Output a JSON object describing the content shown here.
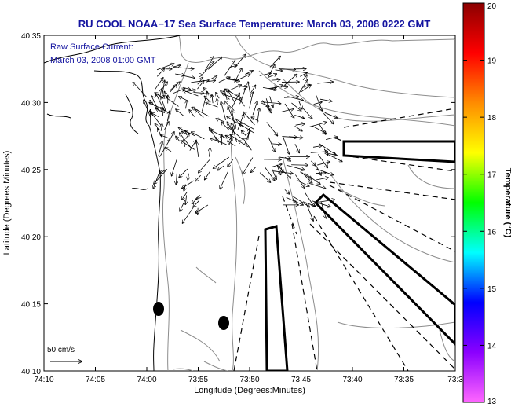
{
  "title": "RU COOL  NOAA−17  Sea Surface Temperature:  March 03, 2008 0222 GMT",
  "annotation": {
    "line1": "Raw Surface Current:",
    "line2": "March 03, 2008 01:00 GMT"
  },
  "scale": {
    "label": "50 cm/s"
  },
  "axes": {
    "ylabel": "Latitude (Degrees:Minutes)",
    "xlabel": "Longitude (Degrees:Minutes)",
    "yticks": [
      "40:35",
      "40:30",
      "40:25",
      "40:20",
      "40:15",
      "40:10"
    ],
    "xticks": [
      "74:10",
      "74:05",
      "74:00",
      "73:55",
      "73:50",
      "73:45",
      "73:40",
      "73:35",
      "73:3"
    ]
  },
  "colorbar": {
    "label": "Temperature (°C)",
    "ticks": [
      "20",
      "19",
      "18",
      "17",
      "16",
      "15",
      "14",
      "13"
    ],
    "stops": [
      "#8b0000",
      "#ff0000",
      "#ff8c00",
      "#ffff00",
      "#00ff00",
      "#00ffff",
      "#0000ff",
      "#8b00ff",
      "#ff66ff"
    ]
  },
  "colors": {
    "land_line": "#000000",
    "bathy": "#8c8c8c",
    "title": "#1414a0"
  }
}
